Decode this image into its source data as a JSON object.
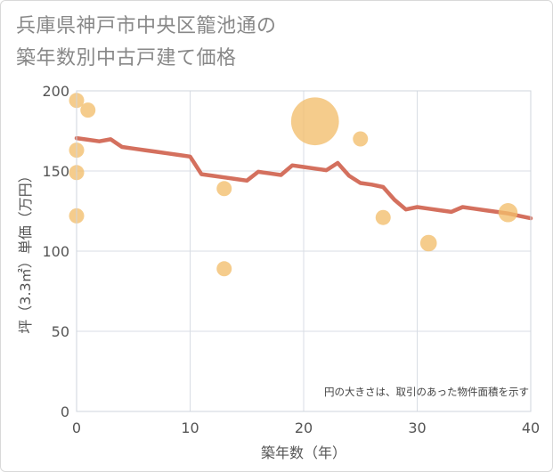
{
  "title_lines": [
    "兵庫県神戸市中央区籠池通の",
    "築年数別中古戸建て価格"
  ],
  "colors": {
    "bubble": "#f2be6b",
    "line": "#d4705e",
    "grid": "#d8dde4",
    "plot_border": "#cfd5dc",
    "text": "#555555",
    "title": "#888888"
  },
  "chart_data": {
    "type": "scatter",
    "title": "兵庫県神戸市中央区籠池通の築年数別中古戸建て価格",
    "xlabel": "築年数（年）",
    "ylabel": "坪（3.3㎡）単価（万円）",
    "xlim": [
      0,
      40
    ],
    "ylim": [
      0,
      200
    ],
    "xticks": [
      0,
      10,
      20,
      30,
      40
    ],
    "yticks": [
      0,
      50,
      100,
      150,
      200
    ],
    "note": "円の大きさは、取引のあった物件面積を示す",
    "bubbles": [
      {
        "x": 0,
        "y": 194,
        "size": 1
      },
      {
        "x": 0,
        "y": 163,
        "size": 1
      },
      {
        "x": 0,
        "y": 149,
        "size": 1
      },
      {
        "x": 0,
        "y": 122,
        "size": 1
      },
      {
        "x": 1,
        "y": 188,
        "size": 1
      },
      {
        "x": 13,
        "y": 139,
        "size": 1
      },
      {
        "x": 13,
        "y": 89,
        "size": 1
      },
      {
        "x": 21,
        "y": 181,
        "size": 10
      },
      {
        "x": 25,
        "y": 170,
        "size": 1
      },
      {
        "x": 27,
        "y": 121,
        "size": 1
      },
      {
        "x": 31,
        "y": 105,
        "size": 1.2
      },
      {
        "x": 38,
        "y": 124,
        "size": 1.6
      }
    ],
    "trend": {
      "x": [
        0,
        1,
        2,
        3,
        4,
        5,
        6,
        7,
        8,
        9,
        10,
        11,
        12,
        13,
        14,
        15,
        16,
        17,
        18,
        19,
        20,
        21,
        22,
        23,
        24,
        25,
        26,
        27,
        28,
        29,
        30,
        31,
        32,
        33,
        34,
        35,
        36,
        37,
        38,
        39,
        40
      ],
      "y": [
        170.5,
        169.5,
        168.5,
        169.8,
        165,
        164,
        163,
        162,
        161,
        160,
        159,
        148,
        147,
        146,
        145,
        144,
        149.5,
        148.5,
        147.5,
        153.5,
        152.5,
        151.5,
        150.5,
        155,
        147,
        142.5,
        141.5,
        140,
        132,
        126,
        127.5,
        126.5,
        125.5,
        124.5,
        127.5,
        126.5,
        125.5,
        124.5,
        123.5,
        122,
        120.5
      ]
    }
  }
}
